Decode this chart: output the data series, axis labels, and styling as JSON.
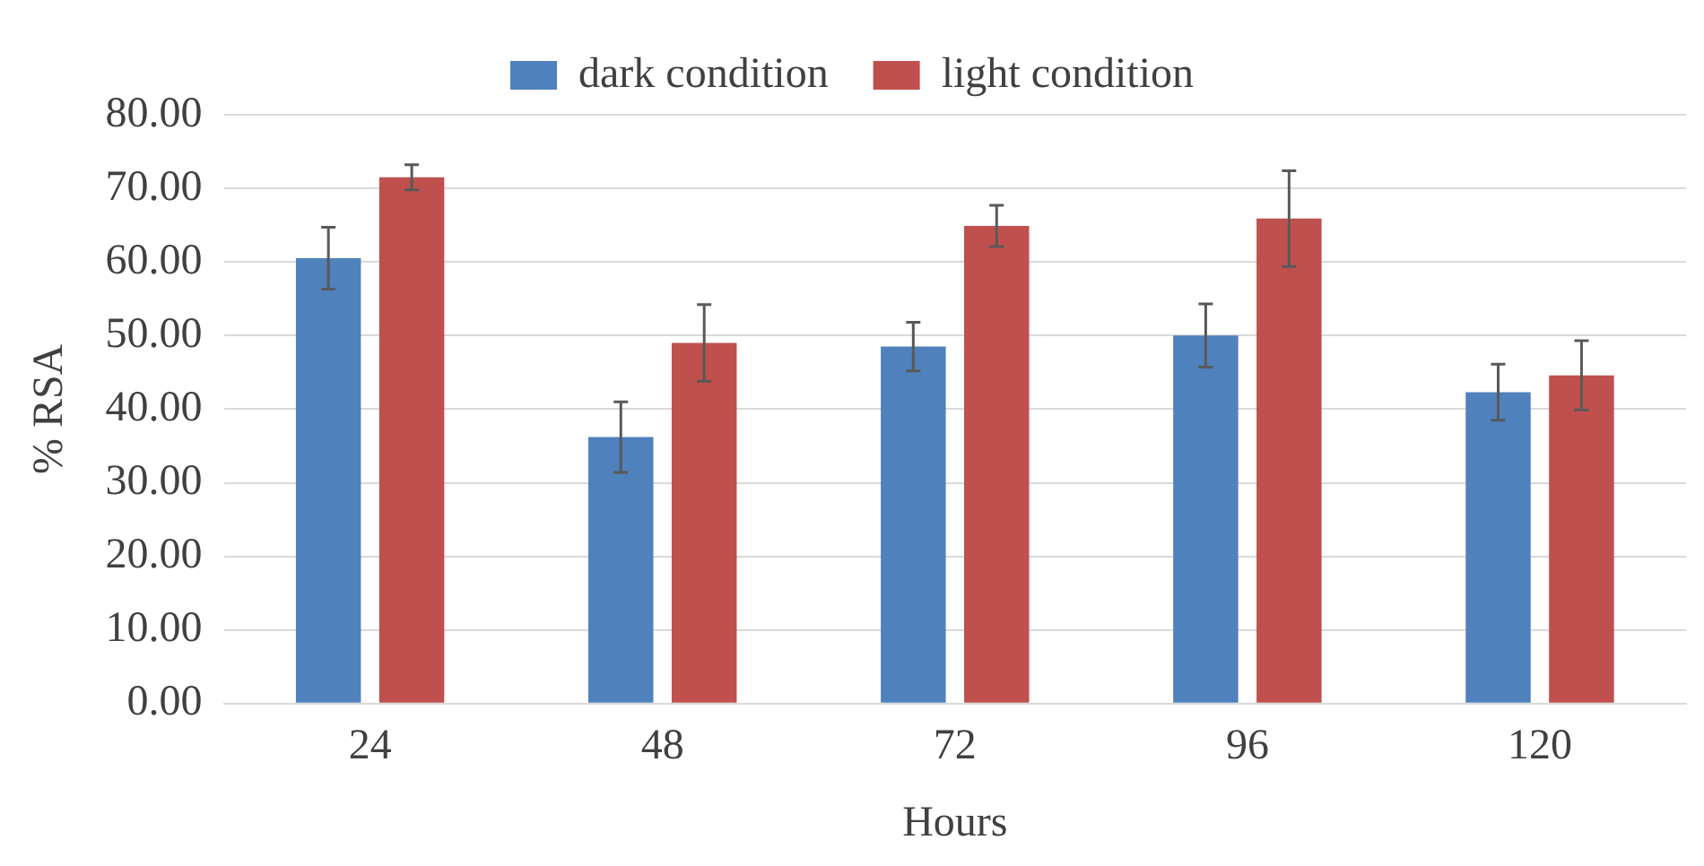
{
  "chart_data": {
    "type": "bar",
    "xlabel": "Hours",
    "ylabel": "% RSA",
    "categories": [
      "24",
      "48",
      "72",
      "96",
      "120"
    ],
    "series": [
      {
        "name": "dark condition",
        "color": "#4f81bd",
        "values": [
          60.5,
          36.2,
          48.5,
          50.0,
          42.3
        ],
        "errors": [
          4.2,
          4.8,
          3.3,
          4.3,
          3.8
        ]
      },
      {
        "name": "light condition",
        "color": "#c0504d",
        "values": [
          71.5,
          49.0,
          64.9,
          65.9,
          44.6
        ],
        "errors": [
          1.7,
          5.2,
          2.8,
          6.5,
          4.7
        ]
      }
    ],
    "ylim": [
      0,
      80
    ],
    "yticks": [
      {
        "value": 0,
        "label": "0.00"
      },
      {
        "value": 10,
        "label": "10.00"
      },
      {
        "value": 20,
        "label": "20.00"
      },
      {
        "value": 30,
        "label": "30.00"
      },
      {
        "value": 40,
        "label": "40.00"
      },
      {
        "value": 50,
        "label": "50.00"
      },
      {
        "value": 60,
        "label": "60.00"
      },
      {
        "value": 70,
        "label": "70.00"
      },
      {
        "value": 80,
        "label": "80.00"
      }
    ],
    "grid": "y",
    "legend": "top"
  }
}
